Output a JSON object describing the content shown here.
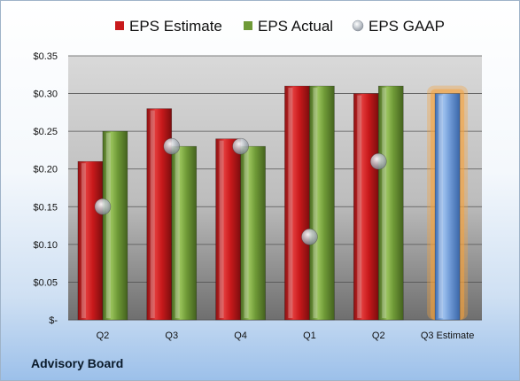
{
  "chart_data": {
    "type": "bar",
    "categories": [
      "Q2",
      "Q3",
      "Q4",
      "Q1",
      "Q2",
      "Q3 Estimate"
    ],
    "series": [
      {
        "name": "EPS Estimate",
        "kind": "bar",
        "color": "#c8191b",
        "values": [
          0.21,
          0.28,
          0.24,
          0.31,
          0.3,
          null
        ]
      },
      {
        "name": "EPS Actual",
        "kind": "bar",
        "color": "#6f9a37",
        "values": [
          0.25,
          0.23,
          0.23,
          0.31,
          0.31,
          null
        ]
      },
      {
        "name": "EPS GAAP",
        "kind": "point",
        "color": "#aab4bf",
        "values": [
          0.15,
          0.23,
          0.23,
          0.11,
          0.21,
          null
        ]
      }
    ],
    "forecast": {
      "category": "Q3 Estimate",
      "value": 0.3,
      "color": "#6f9ad6",
      "glow": "#f5a33c"
    },
    "yticks": [
      "$-",
      "$0.05",
      "$0.10",
      "$0.15",
      "$0.20",
      "$0.25",
      "$0.30",
      "$0.35"
    ],
    "ylim": [
      0,
      0.35
    ],
    "grid": true,
    "legend_position": "top"
  },
  "footer": {
    "brand": "Advisory Board"
  }
}
